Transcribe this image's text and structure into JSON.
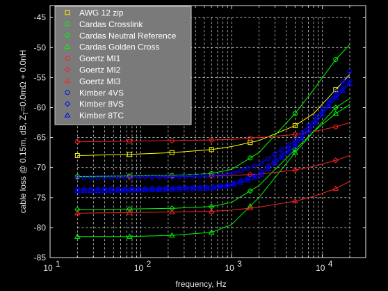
{
  "chart_data": {
    "type": "line",
    "title": "",
    "xlabel": "frequency, Hz",
    "ylabel": "cable loss @ 0.15m, dB, Z_T=0.0mΩ + 0.0nH",
    "x_scale": "log",
    "xlim": [
      10,
      30000
    ],
    "ylim": [
      -85,
      -43
    ],
    "x_ticks": [
      {
        "value": 10,
        "label": "10"
      },
      {
        "value": 100,
        "label": "10"
      },
      {
        "value": 1000,
        "label": "10"
      },
      {
        "value": 10000,
        "label": "10"
      }
    ],
    "x_tick_exponents": [
      "1",
      "2",
      "3",
      "4"
    ],
    "y_ticks": [
      -85,
      -80,
      -75,
      -70,
      -65,
      -60,
      -55,
      -50,
      -45
    ],
    "grid": "dashed, within the data range only",
    "legend_position": "top-left",
    "background": "#000000",
    "axes_color": "#e6e6e6",
    "legend_bg": "#7a7a7a",
    "x_points": [
      20,
      75,
      220,
      600,
      1000,
      2000,
      5000,
      8000,
      14000,
      20000
    ],
    "series": [
      {
        "name": "AWG 12 zip",
        "color": "#ffff00",
        "marker": "square",
        "values": [
          -68.0,
          -67.8,
          -67.5,
          -67.0,
          -66.5,
          -65.5,
          -63.0,
          -61.0,
          -57.0,
          -54.5
        ],
        "marker_x": [
          20,
          75,
          220,
          600,
          1600,
          5000,
          14000
        ]
      },
      {
        "name": "Cardas Crosslink",
        "color": "#00ff00",
        "marker": "circle",
        "values": [
          -71.5,
          -71.4,
          -71.3,
          -71.0,
          -70.3,
          -67.5,
          -61.0,
          -57.0,
          -52.0,
          -49.5
        ],
        "marker_x": [
          20,
          75,
          220,
          600,
          1600,
          5000,
          14000
        ]
      },
      {
        "name": "Cardas Neutral Reference",
        "color": "#00ff00",
        "marker": "diamond",
        "values": [
          -77.0,
          -76.9,
          -76.8,
          -76.5,
          -75.8,
          -73.0,
          -67.0,
          -64.0,
          -60.0,
          -58.5
        ],
        "marker_x": [
          20,
          75,
          220,
          600,
          1600,
          5000,
          14000
        ]
      },
      {
        "name": "Cardas Golden Cross",
        "color": "#00ff00",
        "marker": "triangle",
        "values": [
          -81.5,
          -81.5,
          -81.3,
          -80.8,
          -79.5,
          -75.0,
          -67.5,
          -64.0,
          -61.0,
          -59.5
        ],
        "marker_x": [
          20,
          75,
          220,
          600,
          1600,
          5000,
          14000
        ]
      },
      {
        "name": "Goertz MI1",
        "color": "#ff2020",
        "marker": "circle",
        "values": [
          -65.7,
          -65.6,
          -65.5,
          -65.4,
          -65.3,
          -65.0,
          -64.5,
          -64.0,
          -63.2,
          -62.5
        ],
        "marker_x": [
          20,
          75,
          220,
          600,
          1600,
          5000,
          14000
        ]
      },
      {
        "name": "Goertz MI2",
        "color": "#ff2020",
        "marker": "diamond",
        "values": [
          -71.7,
          -71.6,
          -71.5,
          -71.4,
          -71.3,
          -71.1,
          -70.4,
          -69.8,
          -68.8,
          -68.0
        ],
        "marker_x": [
          20,
          75,
          220,
          600,
          1600,
          5000,
          14000
        ]
      },
      {
        "name": "Goertz MI3",
        "color": "#ff2020",
        "marker": "triangle",
        "values": [
          -77.6,
          -77.5,
          -77.4,
          -77.3,
          -77.1,
          -76.6,
          -75.6,
          -74.8,
          -73.5,
          -72.3
        ],
        "marker_x": [
          20,
          75,
          220,
          600,
          1600,
          5000,
          14000
        ]
      },
      {
        "name": "Kimber 4VS",
        "color": "#0000ff",
        "marker": "circle",
        "values": [
          -71.7,
          -71.6,
          -71.5,
          -71.4,
          -71.0,
          -69.5,
          -65.5,
          -62.0,
          -57.5,
          -54.0
        ],
        "marker_x": []
      },
      {
        "name": "Kimber 8VS",
        "color": "#0000ff",
        "marker": "diamond",
        "values": [
          -73.6,
          -73.5,
          -73.4,
          -73.2,
          -72.8,
          -71.0,
          -66.0,
          -62.5,
          -58.0,
          -55.5
        ],
        "marker_x": []
      },
      {
        "name": "Kimber 8TC",
        "color": "#0000ff",
        "marker": "triangle",
        "values": [
          -73.9,
          -73.8,
          -73.7,
          -73.5,
          -73.0,
          -71.5,
          -66.5,
          -63.0,
          -58.5,
          -56.0
        ],
        "marker_x": []
      }
    ]
  }
}
